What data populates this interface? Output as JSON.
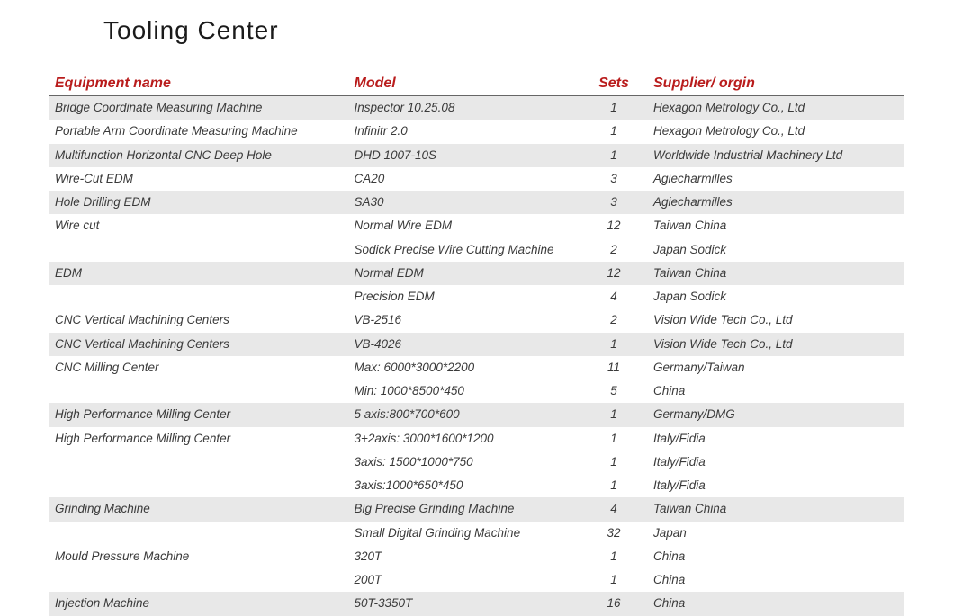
{
  "title": "Tooling  Center",
  "header_color": "#b91c1c",
  "row_shade_color": "#e8e8e8",
  "text_color": "#3a3a3a",
  "columns": {
    "equipment": "Equipment name",
    "model": "Model",
    "sets": "Sets",
    "supplier": "Supplier/ orgin"
  },
  "rows": [
    {
      "equipment": "Bridge Coordinate Measuring Machine",
      "model": "Inspector 10.25.08",
      "sets": "1",
      "supplier": "Hexagon Metrology Co., Ltd",
      "shaded": true
    },
    {
      "equipment": "Portable Arm Coordinate Measuring Machine",
      "model": "Infinitr 2.0",
      "sets": "1",
      "supplier": "Hexagon Metrology Co., Ltd",
      "shaded": false
    },
    {
      "equipment": "Multifunction Horizontal CNC Deep Hole",
      "model": "DHD 1007-10S",
      "sets": "1",
      "supplier": "Worldwide Industrial Machinery Ltd",
      "shaded": true
    },
    {
      "equipment": "Wire-Cut EDM",
      "model": "CA20",
      "sets": "3",
      "supplier": "Agiecharmilles",
      "shaded": false
    },
    {
      "equipment": "Hole Drilling EDM",
      "model": "SA30",
      "sets": "3",
      "supplier": "Agiecharmilles",
      "shaded": true
    },
    {
      "equipment": "Wire cut",
      "model": "Normal Wire EDM",
      "sets": "12",
      "supplier": "Taiwan China",
      "shaded": false
    },
    {
      "equipment": "",
      "model": "Sodick Precise Wire Cutting Machine",
      "sets": "2",
      "supplier": "Japan Sodick",
      "shaded": false
    },
    {
      "equipment": "EDM",
      "model": "Normal EDM",
      "sets": "12",
      "supplier": "Taiwan China",
      "shaded": true
    },
    {
      "equipment": "",
      "model": "Precision EDM",
      "sets": "4",
      "supplier": "Japan Sodick",
      "shaded": false
    },
    {
      "equipment": "CNC Vertical Machining Centers",
      "model": "VB-2516",
      "sets": "2",
      "supplier": "Vision Wide Tech Co., Ltd",
      "shaded": false
    },
    {
      "equipment": "CNC Vertical Machining Centers",
      "model": "VB-4026",
      "sets": "1",
      "supplier": "Vision Wide Tech Co., Ltd",
      "shaded": true
    },
    {
      "equipment": "CNC Milling Center",
      "model": "Max: 6000*3000*2200",
      "sets": "11",
      "supplier": "Germany/Taiwan",
      "shaded": false
    },
    {
      "equipment": "",
      "model": "Min: 1000*8500*450",
      "sets": "5",
      "supplier": "China",
      "shaded": false
    },
    {
      "equipment": "High Performance Milling Center",
      "model": "5 axis:800*700*600",
      "sets": "1",
      "supplier": "Germany/DMG",
      "shaded": true
    },
    {
      "equipment": "High Performance Milling Center",
      "model": "3+2axis: 3000*1600*1200",
      "sets": "1",
      "supplier": "Italy/Fidia",
      "shaded": false
    },
    {
      "equipment": "",
      "model": "3axis: 1500*1000*750",
      "sets": "1",
      "supplier": "Italy/Fidia",
      "shaded": false
    },
    {
      "equipment": "",
      "model": "3axis:1000*650*450",
      "sets": "1",
      "supplier": "Italy/Fidia",
      "shaded": false
    },
    {
      "equipment": "Grinding Machine",
      "model": "Big Precise Grinding Machine",
      "sets": "4",
      "supplier": "Taiwan China",
      "shaded": true
    },
    {
      "equipment": "",
      "model": "Small Digital Grinding Machine",
      "sets": "32",
      "supplier": "Japan",
      "shaded": false
    },
    {
      "equipment": "Mould Pressure Machine",
      "model": "320T",
      "sets": "1",
      "supplier": "China",
      "shaded": false
    },
    {
      "equipment": "",
      "model": "200T",
      "sets": "1",
      "supplier": "China",
      "shaded": false
    },
    {
      "equipment": "Injection Machine",
      "model": "50T-3350T",
      "sets": "16",
      "supplier": "China",
      "shaded": true
    }
  ]
}
